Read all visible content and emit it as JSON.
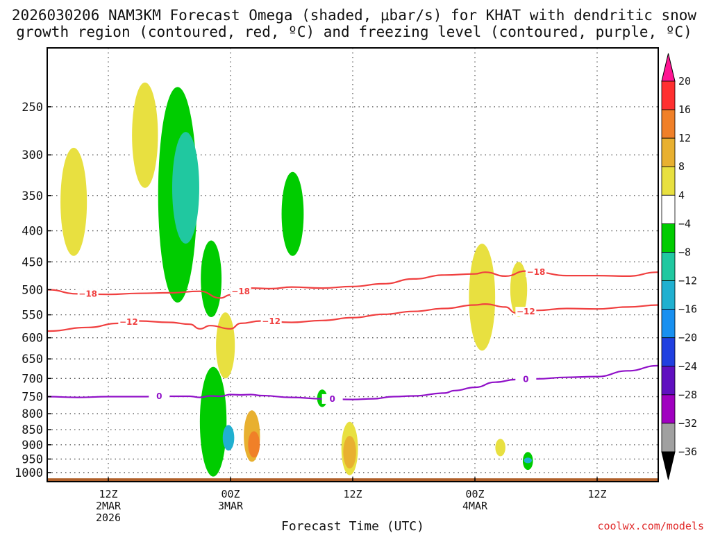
{
  "chart_data": {
    "type": "time-height contour",
    "title_line1": "2026030206 NAM3KM Forecast Omega (shaded, μbar/s) for KHAT with dendritic snow",
    "title_line2": "growth region (contoured, red, ºC) and freezing level (contoured, purple, ºC)",
    "xlabel": "Forecast Time (UTC)",
    "credit": "coolwx.com/models",
    "y_axis": {
      "scale": "log",
      "range_hPa": [
        1035,
        200
      ],
      "ticks": [
        "250",
        "300",
        "350",
        "400",
        "450",
        "500",
        "550",
        "600",
        "650",
        "700",
        "750",
        "800",
        "850",
        "900",
        "950",
        "1000"
      ],
      "grid": true,
      "grid_style": "dotted"
    },
    "x_axis": {
      "range_hours": [
        0,
        60
      ],
      "ticks": [
        {
          "hour": 6,
          "lines": [
            "12Z",
            "2MAR",
            "2026"
          ]
        },
        {
          "hour": 18,
          "lines": [
            "00Z",
            "3MAR"
          ]
        },
        {
          "hour": 30,
          "lines": [
            "12Z"
          ]
        },
        {
          "hour": 42,
          "lines": [
            "00Z",
            "4MAR"
          ]
        },
        {
          "hour": 54,
          "lines": [
            "12Z"
          ]
        }
      ]
    },
    "colorbar": {
      "labels": [
        "20",
        "16",
        "12",
        "8",
        "4",
        "−4",
        "−8",
        "−12",
        "−16",
        "−20",
        "−24",
        "−28",
        "−32",
        "−36"
      ],
      "colors": [
        "#ff1493",
        "#ff3030",
        "#f08028",
        "#e8b030",
        "#e8e040",
        "#ffffff",
        "#00cc00",
        "#20c8a0",
        "#20b0d0",
        "#1890f0",
        "#2040e0",
        "#6010c0",
        "#a000c0",
        "#a0a0a0",
        "#000000"
      ]
    },
    "contours": [
      {
        "name": "-18",
        "color": "#f04040",
        "label": "−18",
        "x": [
          0,
          3,
          6,
          9,
          12,
          15,
          17,
          18,
          20,
          22,
          24,
          27,
          30,
          33,
          36,
          39,
          42,
          43,
          45,
          47,
          48,
          51,
          54,
          57,
          60
        ],
        "p": [
          500,
          508,
          509,
          507,
          506,
          503,
          516,
          510,
          497,
          498,
          495,
          497,
          494,
          489,
          480,
          473,
          471,
          468,
          475,
          466,
          468,
          474,
          474,
          475,
          468
        ]
      },
      {
        "name": "-12",
        "color": "#f04040",
        "label": "−12",
        "x": [
          0,
          4,
          7,
          9,
          12,
          14,
          15,
          16,
          18,
          19,
          21,
          24,
          27,
          30,
          33,
          36,
          39,
          42,
          43,
          45,
          46,
          48,
          51,
          54,
          57,
          60
        ],
        "p": [
          585,
          577,
          568,
          563,
          566,
          570,
          580,
          573,
          580,
          568,
          563,
          566,
          562,
          556,
          549,
          543,
          537,
          530,
          528,
          534,
          546,
          541,
          537,
          538,
          534,
          530
        ]
      },
      {
        "name": "0",
        "color": "#9010c8",
        "label": "0",
        "x": [
          0,
          3,
          6,
          9,
          12,
          14,
          15,
          16,
          17,
          18,
          19,
          20,
          21,
          24,
          27,
          30,
          32,
          34,
          36,
          39,
          40,
          42,
          44,
          46,
          48,
          51,
          54,
          57,
          60
        ],
        "p": [
          750,
          752,
          750,
          750,
          749,
          749,
          752,
          748,
          749,
          744,
          745,
          744,
          747,
          752,
          756,
          758,
          756,
          750,
          748,
          740,
          733,
          724,
          710,
          703,
          701,
          697,
          695,
          680,
          667
        ]
      }
    ],
    "omega_shaded": [
      {
        "level": "4-8",
        "color": "#e8e040",
        "cx": 2.6,
        "p1": 292,
        "p2": 440
      },
      {
        "level": "4-8",
        "color": "#e8e040",
        "cx": 9.6,
        "p1": 228,
        "p2": 340
      },
      {
        "level": "-4 to -8",
        "color": "#00cc00",
        "cx": 12.8,
        "p1": 232,
        "p2": 525
      },
      {
        "level": "-8 to -12",
        "color": "#20c8a0",
        "cx": 13.6,
        "p1": 275,
        "p2": 420
      },
      {
        "level": "-4 to -8",
        "color": "#00cc00",
        "cx": 16.1,
        "p1": 415,
        "p2": 555
      },
      {
        "level": "4-8",
        "color": "#e8e040",
        "cx": 17.5,
        "p1": 545,
        "p2": 700
      },
      {
        "level": "-4 to -8",
        "color": "#00cc00",
        "cx": 24.1,
        "p1": 320,
        "p2": 440
      },
      {
        "level": "4-8",
        "color": "#e8e040",
        "cx": 42.7,
        "p1": 420,
        "p2": 630
      },
      {
        "level": "4-8",
        "color": "#e8e040",
        "cx": 46.3,
        "p1": 450,
        "p2": 555
      },
      {
        "level": "-4 to -8",
        "color": "#00cc00",
        "cx": 16.3,
        "p1": 670,
        "p2": 1015
      },
      {
        "level": "-12 to -16",
        "color": "#20b0d0",
        "cx": 17.8,
        "p1": 835,
        "p2": 920
      },
      {
        "level": "8-12",
        "color": "#e8b030",
        "cx": 20.1,
        "p1": 790,
        "p2": 960
      },
      {
        "level": "12-16",
        "color": "#f08028",
        "cx": 20.3,
        "p1": 855,
        "p2": 945
      },
      {
        "level": "4-8",
        "color": "#e8e040",
        "cx": 29.7,
        "p1": 825,
        "p2": 1010
      },
      {
        "level": "8-12",
        "color": "#e8b030",
        "cx": 29.7,
        "p1": 870,
        "p2": 985
      },
      {
        "level": "-4 to -8",
        "color": "#00cc00",
        "cx": 27.0,
        "p1": 730,
        "p2": 780
      },
      {
        "level": "4-8",
        "color": "#e8e040",
        "cx": 44.5,
        "p1": 880,
        "p2": 940
      },
      {
        "level": "-4 to -8",
        "color": "#00cc00",
        "cx": 47.2,
        "p1": 925,
        "p2": 990
      },
      {
        "level": "-12 to -16",
        "color": "#20b0d0",
        "cx": 47.2,
        "p1": 945,
        "p2": 965
      }
    ],
    "terrain_color": "#b0602a"
  }
}
